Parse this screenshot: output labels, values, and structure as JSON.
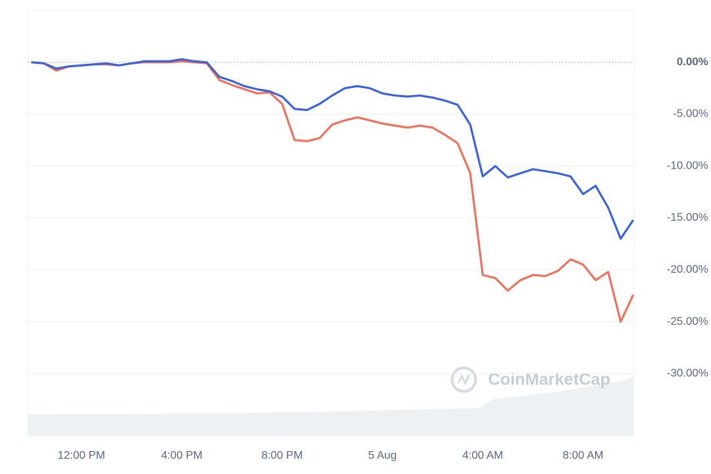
{
  "chart_data": {
    "type": "line",
    "watermark": "CoinMarketCap",
    "categories": [
      null,
      null,
      null,
      null,
      "12:00 PM",
      null,
      null,
      null,
      null,
      null,
      null,
      null,
      "4:00 PM",
      null,
      null,
      null,
      null,
      null,
      null,
      null,
      "8:00 PM",
      null,
      null,
      null,
      null,
      null,
      null,
      null,
      "5 Aug",
      null,
      null,
      null,
      null,
      null,
      null,
      null,
      "4:00 AM",
      null,
      null,
      null,
      null,
      null,
      null,
      null,
      "8:00 AM",
      null,
      null,
      null,
      null
    ],
    "series": [
      {
        "color": "#3861e0",
        "values": [
          0,
          -0.1,
          -0.6,
          -0.4,
          -0.3,
          -0.2,
          -0.1,
          -0.3,
          -0.1,
          0.1,
          0.1,
          0.1,
          0.3,
          0.1,
          0,
          -1.4,
          -1.8,
          -2.3,
          -2.6,
          -2.8,
          -3.3,
          -4.5,
          -4.6,
          -4.0,
          -3.2,
          -2.5,
          -2.3,
          -2.5,
          -3.0,
          -3.2,
          -3.3,
          -3.2,
          -3.4,
          -3.7,
          -4.1,
          -6.0,
          -11.0,
          -10.0,
          -11.1,
          -10.7,
          -10.3,
          -10.5,
          -10.7,
          -11.0,
          -12.7,
          -11.9,
          -14.0,
          -17.0,
          -15.2
        ]
      },
      {
        "color": "#ef7058",
        "values": [
          0,
          -0.1,
          -0.8,
          -0.4,
          -0.3,
          -0.2,
          -0.2,
          -0.3,
          -0.1,
          0,
          0,
          0,
          0.1,
          0,
          -0.1,
          -1.7,
          -2.2,
          -2.6,
          -3.0,
          -2.9,
          -4.0,
          -7.5,
          -7.6,
          -7.3,
          -6.0,
          -5.6,
          -5.3,
          -5.6,
          -5.9,
          -6.1,
          -6.3,
          -6.1,
          -6.3,
          -7.0,
          -7.8,
          -10.7,
          -20.5,
          -20.8,
          -22.0,
          -21.0,
          -20.5,
          -20.6,
          -20.1,
          -19.0,
          -19.5,
          -21.0,
          -20.2,
          -25.0,
          -22.4
        ]
      }
    ],
    "ylim": [
      -36,
      5
    ],
    "yticks": [
      {
        "value": 0,
        "label": "0.00%"
      },
      {
        "value": -5,
        "label": "-5.00%"
      },
      {
        "value": -10,
        "label": "-10.00%"
      },
      {
        "value": -15,
        "label": "-15.00%"
      },
      {
        "value": -20,
        "label": "-20.00%"
      },
      {
        "value": -25,
        "label": "-25.00%"
      },
      {
        "value": -30,
        "label": "-30.00%"
      }
    ],
    "grid": true
  }
}
